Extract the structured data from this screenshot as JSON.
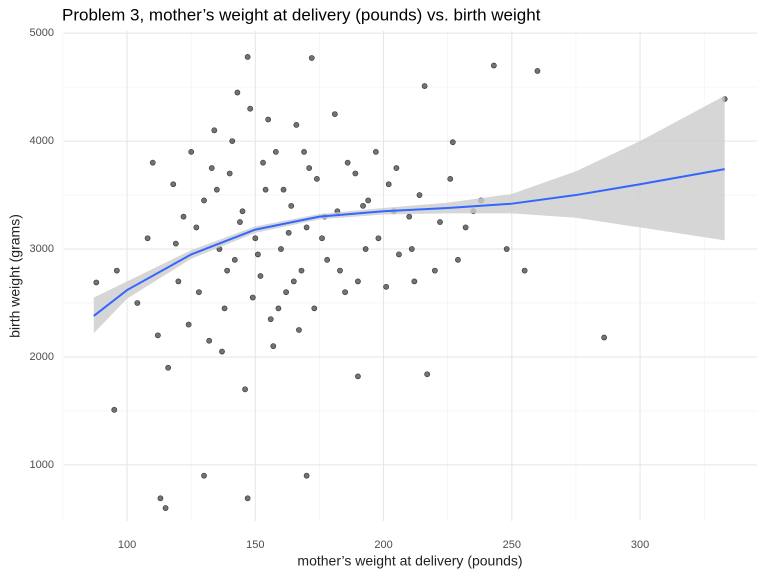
{
  "chart_data": {
    "type": "scatter",
    "title": "Problem 3, mother’s weight at delivery (pounds) vs. birth weight",
    "x_label": "mother’s weight at delivery (pounds)",
    "y_label": "birth weight (grams)",
    "xlim": [
      75.4,
      345.6
    ],
    "ylim": [
      480,
      5020
    ],
    "xticks": [
      100,
      150,
      200,
      250,
      300
    ],
    "yticks": [
      1000,
      2000,
      3000,
      4000,
      5000
    ],
    "x_minor_ticks": [
      75,
      125,
      175,
      225,
      275,
      325
    ],
    "y_minor_ticks": [
      1500,
      2500,
      3500,
      4500
    ],
    "grid": true,
    "points": {
      "color": "#000000",
      "x": [
        333,
        260,
        243,
        286,
        217,
        147,
        113,
        115,
        95,
        88,
        147,
        172,
        216,
        227,
        190,
        130,
        170,
        96,
        104,
        108,
        112,
        118,
        120,
        122,
        125,
        128,
        130,
        132,
        134,
        136,
        138,
        140,
        142,
        144,
        146,
        148,
        150,
        152,
        154,
        156,
        158,
        160,
        162,
        164,
        166,
        168,
        170,
        174,
        178,
        182,
        186,
        190,
        194,
        198,
        202,
        206,
        210,
        214,
        220,
        226,
        232,
        238,
        248,
        110,
        116,
        124,
        133,
        137,
        141,
        145,
        149,
        153,
        157,
        161,
        165,
        169,
        173,
        177,
        181,
        185,
        189,
        193,
        197,
        201,
        205,
        211,
        235,
        119,
        127,
        135,
        139,
        143,
        151,
        155,
        159,
        163,
        167,
        171,
        176,
        183,
        192,
        204,
        212,
        222,
        229,
        255
      ],
      "y": [
        4390,
        4650,
        4700,
        2180,
        1840,
        690,
        690,
        600,
        1510,
        2690,
        4780,
        4770,
        4510,
        3990,
        1820,
        900,
        900,
        2800,
        2500,
        3100,
        2200,
        3600,
        2700,
        3300,
        3900,
        2600,
        3450,
        2150,
        4100,
        3000,
        2450,
        3700,
        2900,
        3250,
        1700,
        4300,
        3100,
        2750,
        3550,
        2350,
        3900,
        3000,
        2600,
        3400,
        4150,
        2800,
        3200,
        3650,
        2900,
        3350,
        3800,
        2700,
        3450,
        3100,
        3600,
        2950,
        3300,
        3500,
        2800,
        3650,
        3200,
        3450,
        3000,
        3800,
        1900,
        2300,
        3750,
        2050,
        4000,
        3350,
        2550,
        3800,
        2100,
        3550,
        2700,
        3900,
        2450,
        3300,
        4250,
        2600,
        3700,
        3000,
        3900,
        2650,
        3750,
        3000,
        3350,
        3050,
        3200,
        3550,
        2800,
        4450,
        2950,
        4200,
        2450,
        3150,
        2250,
        3750,
        3100,
        2800,
        3400,
        3350,
        2700,
        3250,
        2900,
        2800
      ]
    },
    "smooth": {
      "color": "#3366ff",
      "band_color": "#cccccc",
      "x": [
        87,
        100,
        125,
        150,
        175,
        200,
        225,
        250,
        275,
        300,
        333
      ],
      "y": [
        2380,
        2620,
        2950,
        3180,
        3300,
        3350,
        3380,
        3420,
        3500,
        3600,
        3740
      ],
      "lower": [
        2220,
        2540,
        2910,
        3150,
        3275,
        3320,
        3330,
        3330,
        3290,
        3200,
        3080
      ],
      "upper": [
        2550,
        2700,
        2990,
        3210,
        3325,
        3380,
        3430,
        3510,
        3720,
        4000,
        4420
      ]
    }
  }
}
